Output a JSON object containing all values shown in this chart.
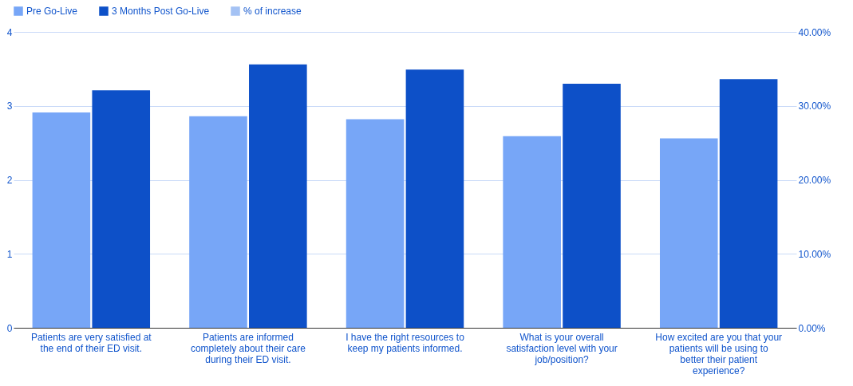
{
  "chart_data": {
    "type": "bar",
    "categories": [
      "Patients are very satisfied at the end of their ED visit.",
      "Patients are informed completely about their care during their ED visit.",
      "I have the right resources to keep my patients informed.",
      "What is your overall satisfaction level with your job/position?",
      "How excited are you that your patients will be using to better their patient experience?"
    ],
    "series": [
      {
        "name": "Pre Go-Live",
        "color": "#77a6f7",
        "values": [
          2.91,
          2.86,
          2.82,
          2.59,
          2.56
        ]
      },
      {
        "name": "3 Months Post Go-Live",
        "color": "#0d50c8",
        "values": [
          3.21,
          3.56,
          3.49,
          3.3,
          3.36
        ]
      },
      {
        "name": "% of increase",
        "color": "#a4c2f4",
        "type": "line",
        "axis": "y2",
        "values": [
          null,
          null,
          null,
          null,
          null
        ]
      }
    ],
    "ylim": [
      0,
      4
    ],
    "yticks": [
      0,
      1,
      2,
      3,
      4
    ],
    "y2lim": [
      0,
      40
    ],
    "y2ticks": [
      {
        "value": 0,
        "label": "0.00%"
      },
      {
        "value": 10,
        "label": "10.00%"
      },
      {
        "value": 20,
        "label": "20.00%"
      },
      {
        "value": 30,
        "label": "30.00%"
      },
      {
        "value": 40,
        "label": "40.00%"
      }
    ],
    "grid": "y",
    "legend": "top"
  }
}
